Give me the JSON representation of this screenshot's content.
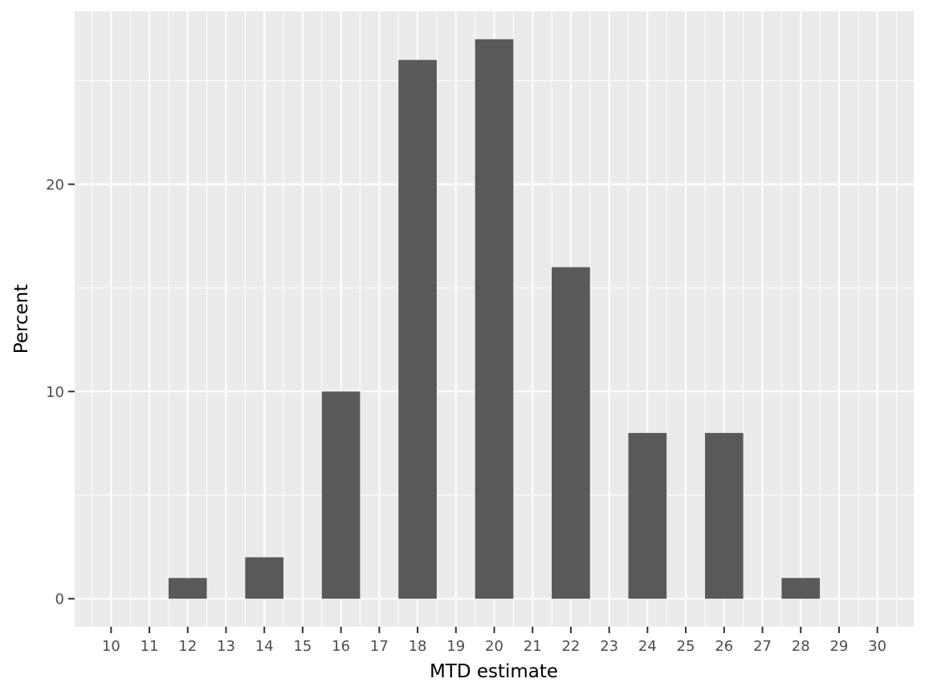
{
  "chart_data": {
    "type": "bar",
    "title": "",
    "xlabel": "MTD estimate",
    "ylabel": "Percent",
    "x_ticks": [
      "10",
      "11",
      "12",
      "13",
      "14",
      "15",
      "16",
      "17",
      "18",
      "19",
      "20",
      "21",
      "22",
      "23",
      "24",
      "25",
      "26",
      "27",
      "28",
      "29",
      "30"
    ],
    "categories": [
      "12",
      "14",
      "16",
      "18",
      "20",
      "22",
      "24",
      "26",
      "28"
    ],
    "values": [
      1,
      2,
      10,
      26,
      27,
      16,
      8,
      8,
      1
    ],
    "y_ticks": [
      0,
      10,
      20
    ],
    "xlim": [
      9.05,
      30.95
    ],
    "ylim": [
      -1.35,
      28.35
    ],
    "bar_width": 1,
    "grid": true,
    "legend": "none",
    "colors": {
      "panel_background": "#ebebeb",
      "grid": "#ffffff",
      "bar": "#595959",
      "tick": "#333333",
      "tick_text": "#4d4d4d",
      "axis_title": "#000000"
    }
  }
}
